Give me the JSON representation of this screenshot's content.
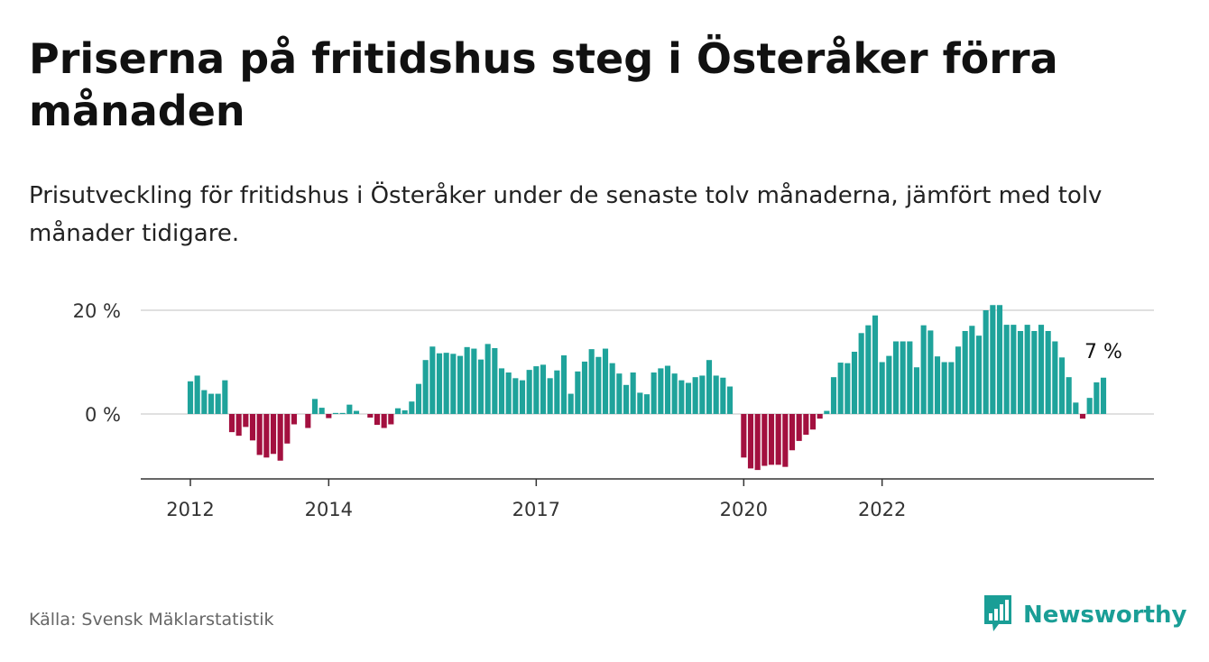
{
  "header": {
    "title": "Priserna på fritidshus steg i Österåker förra månaden",
    "subtitle": "Prisutveckling för fritidshus i Österåker under de senaste tolv månaderna, jämfört med tolv månader tidigare."
  },
  "footer": {
    "source": "Källa: Svensk Mäklarstatistik",
    "brand": "Newsworthy",
    "brand_icon": "bar-chart-logo-icon"
  },
  "colors": {
    "positive": "#1fa39b",
    "negative": "#a3103f",
    "grid": "#d6d6d6",
    "axis": "#333333",
    "brand": "#1a9e96"
  },
  "chart_data": {
    "type": "bar",
    "title": "Priserna på fritidshus steg i Österåker förra månaden",
    "subtitle": "Prisutveckling för fritidshus i Österåker under de senaste tolv månaderna, jämfört med tolv månader tidigare.",
    "xlabel": "",
    "ylabel": "",
    "ylim": [
      -12,
      20
    ],
    "yticks": [
      {
        "value": 20,
        "label": "20 %"
      },
      {
        "value": 0,
        "label": "0 %"
      }
    ],
    "xticks": [
      {
        "index": 0,
        "label": "2012"
      },
      {
        "index": 20,
        "label": "2014"
      },
      {
        "index": 50,
        "label": "2017"
      },
      {
        "index": 80,
        "label": "2020"
      },
      {
        "index": 100,
        "label": "2022"
      }
    ],
    "grid": true,
    "last_label": "7 %",
    "series": [
      {
        "values": [
          6.3,
          7.4,
          4.6,
          3.9,
          3.9,
          6.5,
          -3.5,
          -4.2,
          -2.5,
          -5.1,
          -7.9,
          -8.4,
          -7.7,
          -9.0,
          -5.7,
          -2.0,
          0,
          -2.7,
          2.9,
          1.2,
          -0.8,
          0.2,
          0.2,
          1.8,
          0.6,
          0,
          -0.7,
          -2.1,
          -2.7,
          -2.0,
          1.1,
          0.7,
          2.4,
          5.8,
          10.4,
          13.0,
          11.7,
          11.8,
          11.6,
          11.2,
          12.9,
          12.6,
          10.5,
          13.5,
          12.7,
          8.8,
          8.0,
          6.9,
          6.5,
          8.5,
          9.2,
          9.5,
          6.9,
          8.4,
          11.3,
          3.9,
          8.2,
          10.1,
          12.5,
          11.0,
          12.6,
          9.8,
          7.8,
          5.6,
          8.0,
          4.1,
          3.8,
          8.0,
          8.8,
          9.3,
          7.8,
          6.5,
          6.0,
          7.1,
          7.4,
          10.4,
          7.4,
          7.0,
          5.3,
          0,
          -8.4,
          -10.5,
          -10.8,
          -10.0,
          -9.8,
          -9.8,
          -10.2,
          -7.0,
          -5.2,
          -4.0,
          -3.0,
          -0.9,
          0.6,
          7.1,
          9.9,
          9.8,
          12.0,
          15.6,
          17.1,
          19.0,
          10.0,
          11.2,
          14.0,
          14.0,
          14.0,
          9.0,
          17.1,
          16.1,
          11.1,
          10.0,
          10.0,
          13.0,
          16.0,
          17.0,
          15.1,
          20.0,
          21.0,
          21.0,
          17.2,
          17.2,
          16.0,
          17.2,
          16.0,
          17.2,
          16.0,
          14.0,
          10.9,
          7.1,
          2.2,
          -0.9,
          3.1,
          6.1,
          7.0
        ]
      }
    ]
  }
}
